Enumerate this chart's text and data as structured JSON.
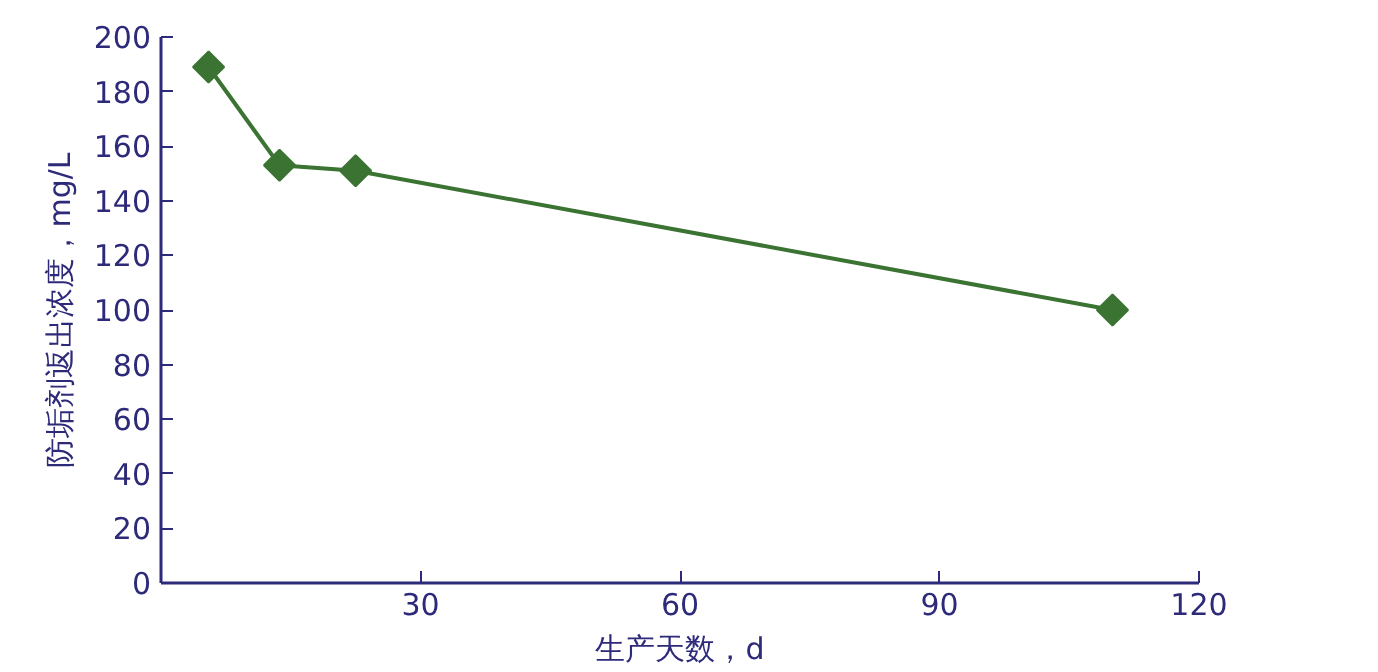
{
  "chart_data": {
    "type": "line",
    "xlabel": "生产天数，d",
    "ylabel": "防垢剂返出浓度，mg/L",
    "x": [
      5.5,
      13.7,
      22.5,
      110
    ],
    "series": [
      {
        "color": "#3a7332",
        "values": [
          189,
          153,
          151,
          100
        ]
      }
    ],
    "marker": "diamond",
    "line_style": "solid",
    "grid": false,
    "xlim": [
      0,
      120
    ],
    "xticks": [
      {
        "value": 0,
        "label": null
      },
      30,
      60,
      90,
      120
    ],
    "ylim": [
      0,
      200
    ],
    "yticks": [
      0,
      20,
      40,
      60,
      80,
      100,
      120,
      140,
      160,
      180,
      200
    ]
  }
}
